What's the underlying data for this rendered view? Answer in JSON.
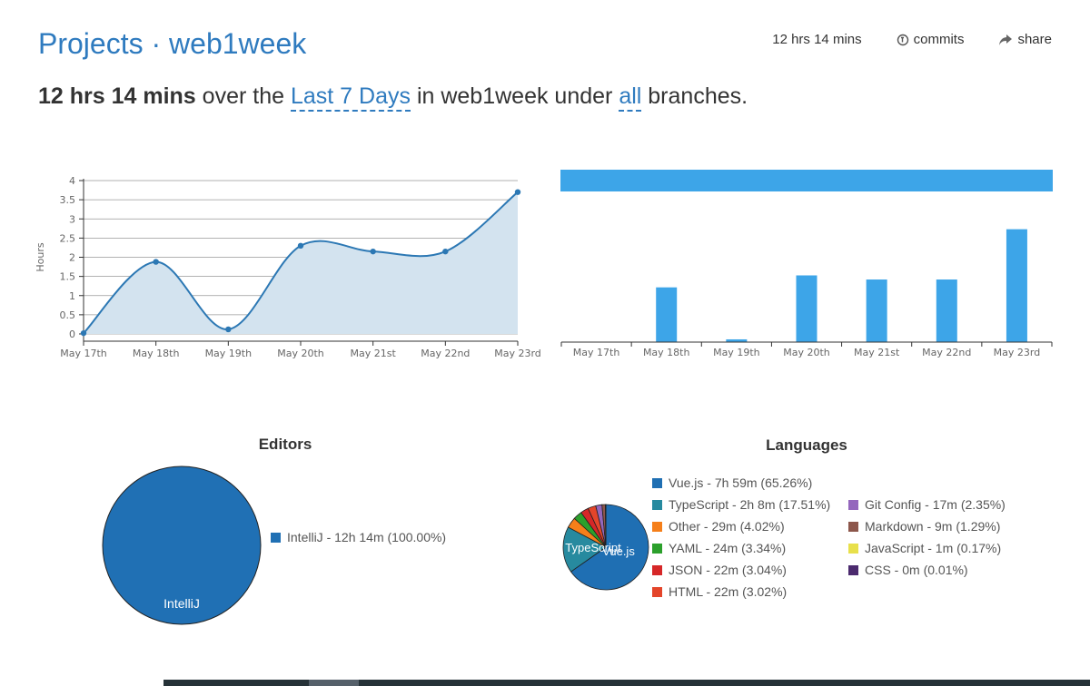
{
  "header": {
    "title": "Projects · web1week",
    "total_time": "12 hrs 14 mins",
    "commits_label": "commits",
    "share_label": "share"
  },
  "summary": {
    "total": "12 hrs 14 mins",
    "t1": "over the",
    "range": "Last 7 Days",
    "t2": "in web1week under",
    "branches": "all",
    "t3": "branches."
  },
  "chart_data": [
    {
      "type": "area",
      "ylabel": "Hours",
      "categories": [
        "May 17th",
        "May 18th",
        "May 19th",
        "May 20th",
        "May 21st",
        "May 22nd",
        "May 23rd"
      ],
      "values": [
        0.02,
        1.88,
        0.12,
        2.3,
        2.15,
        2.15,
        3.7
      ],
      "ylim": [
        0,
        4
      ],
      "yticks": [
        "0",
        "0.5",
        "1",
        "1.5",
        "2",
        "2.5",
        "3",
        "3.5",
        "4"
      ],
      "grid": true,
      "color": "#2c78b4",
      "fill": "#d3e3ef"
    },
    {
      "type": "bar",
      "categories": [
        "May 17th",
        "May 18th",
        "May 19th",
        "May 20th",
        "May 21st",
        "May 22nd",
        "May 23rd"
      ],
      "values": [
        0,
        1.6,
        0.08,
        1.95,
        1.83,
        1.83,
        3.3
      ],
      "ylim": [
        0,
        3.9
      ],
      "total_bar": 1,
      "color": "#3da5e8"
    },
    {
      "type": "pie",
      "title": "Editors",
      "slices": [
        {
          "label": "IntelliJ",
          "legend": "IntelliJ - 12h 14m (100.00%)",
          "value": 100.0,
          "color": "#2070b4"
        }
      ]
    },
    {
      "type": "pie",
      "title": "Languages",
      "slices": [
        {
          "label": "Vue.js",
          "legend": "Vue.js - 7h 59m (65.26%)",
          "value": 65.26,
          "color": "#1f6fb3"
        },
        {
          "label": "TypeScript",
          "legend": "TypeScript - 2h 8m (17.51%)",
          "value": 17.51,
          "color": "#278a9f"
        },
        {
          "label": "Other",
          "legend": "Other - 29m (4.02%)",
          "value": 4.02,
          "color": "#f57f1a"
        },
        {
          "label": "YAML",
          "legend": "YAML - 24m (3.34%)",
          "value": 3.34,
          "color": "#2ca02c"
        },
        {
          "label": "JSON",
          "legend": "JSON - 22m (3.04%)",
          "value": 3.04,
          "color": "#d62728"
        },
        {
          "label": "HTML",
          "legend": "HTML - 22m (3.02%)",
          "value": 3.02,
          "color": "#e4452a"
        },
        {
          "label": "Git Config",
          "legend": "Git Config - 17m (2.35%)",
          "value": 2.35,
          "color": "#9467bd"
        },
        {
          "label": "Markdown",
          "legend": "Markdown - 9m (1.29%)",
          "value": 1.29,
          "color": "#8c564b"
        },
        {
          "label": "JavaScript",
          "legend": "JavaScript - 1m (0.17%)",
          "value": 0.17,
          "color": "#e8e04b"
        },
        {
          "label": "CSS",
          "legend": "CSS - 0m (0.01%)",
          "value": 0.01,
          "color": "#4b2a6e"
        }
      ]
    }
  ]
}
